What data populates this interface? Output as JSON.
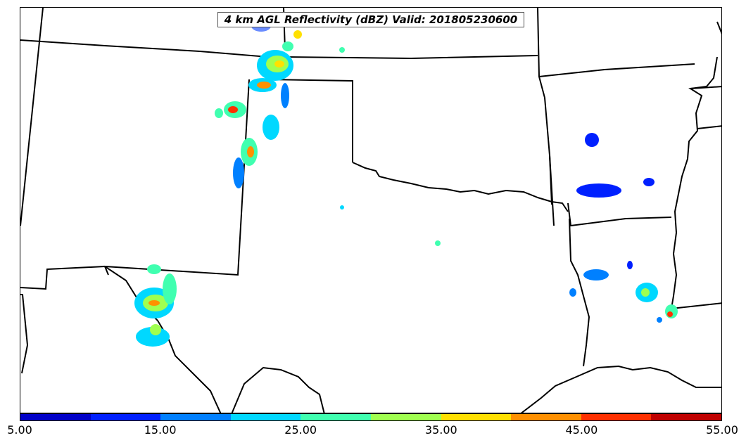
{
  "map": {
    "title": "4 km AGL Reflectivity (dBZ) Valid: 201805230600"
  },
  "colorbar": {
    "colors": [
      "#0000c8",
      "#0020ff",
      "#0080ff",
      "#00d8ff",
      "#40ffb0",
      "#a0ff50",
      "#ffe000",
      "#ff9000",
      "#ff3000",
      "#c00000"
    ],
    "tick_labels": [
      "5.00",
      "15.00",
      "25.00",
      "35.00",
      "45.00",
      "55.00"
    ]
  }
}
